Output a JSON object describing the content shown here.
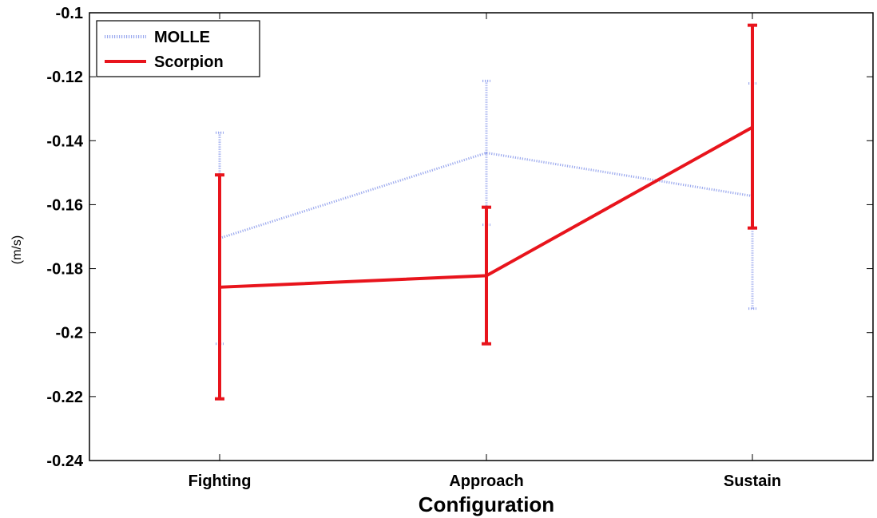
{
  "chart_data": {
    "type": "line",
    "title": "",
    "xlabel": "Configuration",
    "ylabel": "(m/s)",
    "categories": [
      "Fighting",
      "Approach",
      "Sustain"
    ],
    "ylim": [
      -0.24,
      -0.1
    ],
    "yticks": [
      "-0.1",
      "-0.12",
      "-0.14",
      "-0.16",
      "-0.18",
      "-0.2",
      "-0.22",
      "-0.24"
    ],
    "ytick_values": [
      -0.1,
      -0.12,
      -0.14,
      -0.16,
      -0.18,
      -0.2,
      -0.22,
      -0.24
    ],
    "grid": false,
    "legend_position": "top-left",
    "series": [
      {
        "name": "MOLLE",
        "color": "#9aa8ee",
        "style": "dotted",
        "values": [
          -0.1705,
          -0.1438,
          -0.1573
        ],
        "err_low": [
          -0.2035,
          -0.1663,
          -0.1925
        ],
        "err_high": [
          -0.1375,
          -0.1213,
          -0.1221
        ]
      },
      {
        "name": "Scorpion",
        "color": "#e8141c",
        "style": "solid",
        "values": [
          -0.1858,
          -0.1822,
          -0.1358
        ],
        "err_low": [
          -0.2207,
          -0.2035,
          -0.1673
        ],
        "err_high": [
          -0.1507,
          -0.1608,
          -0.1039
        ]
      }
    ]
  }
}
